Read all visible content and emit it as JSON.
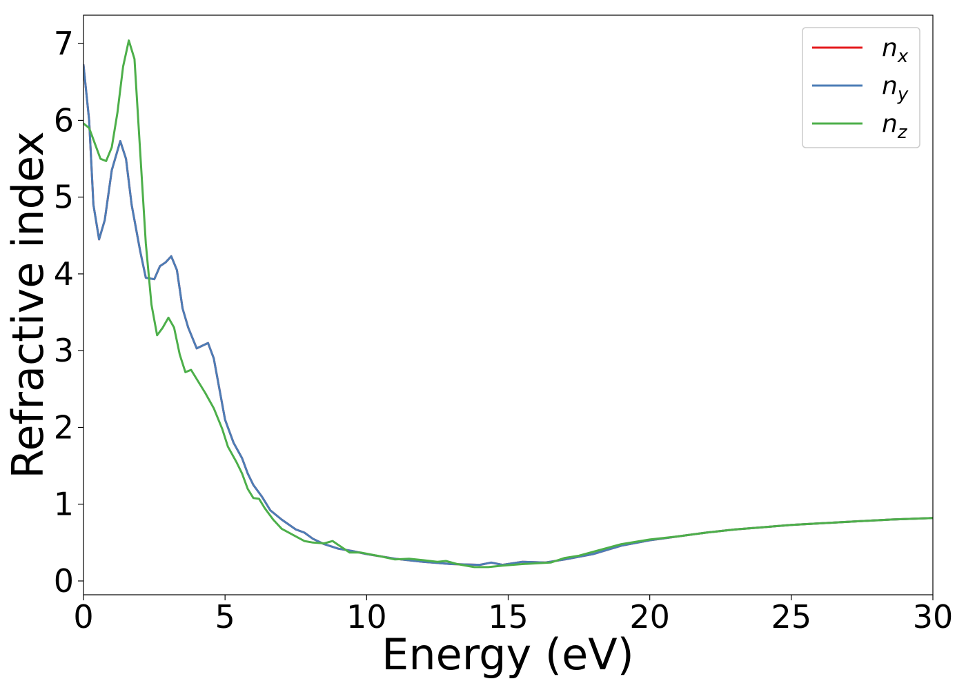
{
  "chart_data": {
    "type": "line",
    "title": "",
    "xlabel": "Energy (eV)",
    "ylabel": "Refractive index",
    "xlim": [
      0,
      30
    ],
    "ylim": [
      -0.18,
      7.37
    ],
    "xticks": [
      0,
      5,
      10,
      15,
      20,
      25,
      30
    ],
    "yticks": [
      0,
      1,
      2,
      3,
      4,
      5,
      6,
      7
    ],
    "grid": false,
    "legend_position": "top-right",
    "series": [
      {
        "name": "n",
        "subscript": "x",
        "color": "#e41a1c",
        "points": [
          [
            0,
            6.72
          ],
          [
            0.2,
            6.0
          ],
          [
            0.35,
            4.9
          ],
          [
            0.55,
            4.45
          ],
          [
            0.75,
            4.7
          ],
          [
            1.0,
            5.35
          ],
          [
            1.3,
            5.73
          ],
          [
            1.5,
            5.5
          ],
          [
            1.7,
            4.9
          ],
          [
            2.0,
            4.3
          ],
          [
            2.2,
            3.95
          ],
          [
            2.5,
            3.93
          ],
          [
            2.7,
            4.1
          ],
          [
            2.9,
            4.15
          ],
          [
            3.1,
            4.23
          ],
          [
            3.3,
            4.05
          ],
          [
            3.5,
            3.55
          ],
          [
            3.7,
            3.3
          ],
          [
            4.0,
            3.03
          ],
          [
            4.4,
            3.1
          ],
          [
            4.6,
            2.9
          ],
          [
            4.8,
            2.5
          ],
          [
            5.0,
            2.1
          ],
          [
            5.3,
            1.8
          ],
          [
            5.6,
            1.6
          ],
          [
            5.8,
            1.4
          ],
          [
            6.0,
            1.25
          ],
          [
            6.3,
            1.1
          ],
          [
            6.6,
            0.92
          ],
          [
            7.0,
            0.8
          ],
          [
            7.5,
            0.67
          ],
          [
            7.8,
            0.63
          ],
          [
            8.1,
            0.55
          ],
          [
            8.5,
            0.48
          ],
          [
            9.0,
            0.42
          ],
          [
            9.5,
            0.39
          ],
          [
            10.0,
            0.35
          ],
          [
            11.0,
            0.29
          ],
          [
            12.0,
            0.25
          ],
          [
            13.0,
            0.22
          ],
          [
            14.0,
            0.21
          ],
          [
            14.4,
            0.24
          ],
          [
            14.8,
            0.21
          ],
          [
            15.5,
            0.25
          ],
          [
            16.3,
            0.24
          ],
          [
            17.0,
            0.28
          ],
          [
            18.0,
            0.35
          ],
          [
            19.0,
            0.46
          ],
          [
            20.0,
            0.53
          ],
          [
            21.0,
            0.58
          ],
          [
            22.0,
            0.63
          ],
          [
            23.0,
            0.67
          ],
          [
            24.0,
            0.7
          ],
          [
            25.0,
            0.73
          ],
          [
            27.0,
            0.77
          ],
          [
            28.5,
            0.8
          ],
          [
            30.0,
            0.82
          ]
        ]
      },
      {
        "name": "n",
        "subscript": "y",
        "color": "#4c7db6",
        "points": [
          [
            0,
            6.72
          ],
          [
            0.2,
            6.0
          ],
          [
            0.35,
            4.9
          ],
          [
            0.55,
            4.45
          ],
          [
            0.75,
            4.7
          ],
          [
            1.0,
            5.35
          ],
          [
            1.3,
            5.73
          ],
          [
            1.5,
            5.5
          ],
          [
            1.7,
            4.9
          ],
          [
            2.0,
            4.3
          ],
          [
            2.2,
            3.95
          ],
          [
            2.5,
            3.93
          ],
          [
            2.7,
            4.1
          ],
          [
            2.9,
            4.15
          ],
          [
            3.1,
            4.23
          ],
          [
            3.3,
            4.05
          ],
          [
            3.5,
            3.55
          ],
          [
            3.7,
            3.3
          ],
          [
            4.0,
            3.03
          ],
          [
            4.4,
            3.1
          ],
          [
            4.6,
            2.9
          ],
          [
            4.8,
            2.5
          ],
          [
            5.0,
            2.1
          ],
          [
            5.3,
            1.8
          ],
          [
            5.6,
            1.6
          ],
          [
            5.8,
            1.4
          ],
          [
            6.0,
            1.25
          ],
          [
            6.3,
            1.1
          ],
          [
            6.6,
            0.92
          ],
          [
            7.0,
            0.8
          ],
          [
            7.5,
            0.67
          ],
          [
            7.8,
            0.63
          ],
          [
            8.1,
            0.55
          ],
          [
            8.5,
            0.48
          ],
          [
            9.0,
            0.42
          ],
          [
            9.5,
            0.39
          ],
          [
            10.0,
            0.35
          ],
          [
            11.0,
            0.29
          ],
          [
            12.0,
            0.25
          ],
          [
            13.0,
            0.22
          ],
          [
            14.0,
            0.21
          ],
          [
            14.4,
            0.24
          ],
          [
            14.8,
            0.21
          ],
          [
            15.5,
            0.25
          ],
          [
            16.3,
            0.24
          ],
          [
            17.0,
            0.28
          ],
          [
            18.0,
            0.35
          ],
          [
            19.0,
            0.46
          ],
          [
            20.0,
            0.53
          ],
          [
            21.0,
            0.58
          ],
          [
            22.0,
            0.63
          ],
          [
            23.0,
            0.67
          ],
          [
            24.0,
            0.7
          ],
          [
            25.0,
            0.73
          ],
          [
            27.0,
            0.77
          ],
          [
            28.5,
            0.8
          ],
          [
            30.0,
            0.82
          ]
        ]
      },
      {
        "name": "n",
        "subscript": "z",
        "color": "#4daf4a",
        "points": [
          [
            0,
            5.96
          ],
          [
            0.2,
            5.9
          ],
          [
            0.4,
            5.7
          ],
          [
            0.6,
            5.5
          ],
          [
            0.8,
            5.47
          ],
          [
            1.0,
            5.65
          ],
          [
            1.2,
            6.1
          ],
          [
            1.4,
            6.7
          ],
          [
            1.6,
            7.04
          ],
          [
            1.8,
            6.8
          ],
          [
            2.0,
            5.6
          ],
          [
            2.2,
            4.4
          ],
          [
            2.4,
            3.6
          ],
          [
            2.6,
            3.2
          ],
          [
            2.8,
            3.3
          ],
          [
            3.0,
            3.43
          ],
          [
            3.2,
            3.3
          ],
          [
            3.4,
            2.95
          ],
          [
            3.6,
            2.72
          ],
          [
            3.8,
            2.75
          ],
          [
            4.0,
            2.63
          ],
          [
            4.3,
            2.45
          ],
          [
            4.6,
            2.25
          ],
          [
            4.9,
            1.98
          ],
          [
            5.1,
            1.75
          ],
          [
            5.4,
            1.55
          ],
          [
            5.6,
            1.4
          ],
          [
            5.8,
            1.2
          ],
          [
            6.0,
            1.08
          ],
          [
            6.2,
            1.07
          ],
          [
            6.4,
            0.95
          ],
          [
            6.7,
            0.8
          ],
          [
            7.0,
            0.68
          ],
          [
            7.4,
            0.6
          ],
          [
            7.8,
            0.52
          ],
          [
            8.1,
            0.5
          ],
          [
            8.5,
            0.49
          ],
          [
            8.8,
            0.52
          ],
          [
            9.0,
            0.47
          ],
          [
            9.4,
            0.37
          ],
          [
            9.8,
            0.37
          ],
          [
            10.5,
            0.32
          ],
          [
            11.0,
            0.28
          ],
          [
            11.5,
            0.29
          ],
          [
            12.0,
            0.27
          ],
          [
            12.5,
            0.25
          ],
          [
            12.8,
            0.26
          ],
          [
            13.2,
            0.22
          ],
          [
            13.8,
            0.18
          ],
          [
            14.3,
            0.18
          ],
          [
            14.8,
            0.2
          ],
          [
            15.5,
            0.22
          ],
          [
            16.5,
            0.24
          ],
          [
            17.0,
            0.3
          ],
          [
            17.5,
            0.33
          ],
          [
            18.0,
            0.38
          ],
          [
            19.0,
            0.48
          ],
          [
            20.0,
            0.54
          ],
          [
            21.0,
            0.58
          ],
          [
            22.0,
            0.63
          ],
          [
            23.0,
            0.67
          ],
          [
            24.0,
            0.7
          ],
          [
            25.0,
            0.73
          ],
          [
            27.0,
            0.77
          ],
          [
            28.5,
            0.8
          ],
          [
            30.0,
            0.82
          ]
        ]
      }
    ]
  }
}
